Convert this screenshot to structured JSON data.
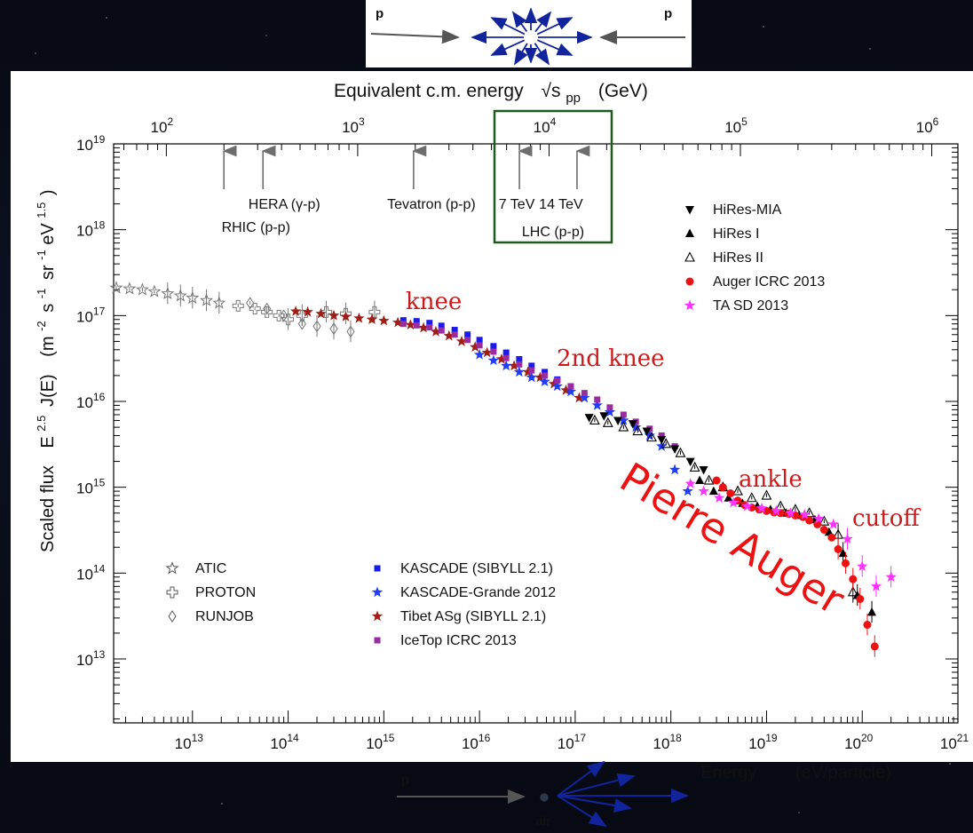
{
  "colors": {
    "kascade": "#1a1aee",
    "kascade_grande": "#1f3cff",
    "tibet": "#a01e16",
    "icetop": "#9a2ba0",
    "auger": "#ee1111",
    "tasd": "#ff33ff",
    "gray": "#777777",
    "hires": "#000000",
    "annotation": "#cc1a1a",
    "lhc_box": "#1e5a1e",
    "arrow_blue": "#12249c"
  },
  "diagram_top": {
    "label_left": "p",
    "label_right": "p"
  },
  "diagram_bottom": {
    "label_p": "p",
    "label_air": "air"
  },
  "top_axis": {
    "title_main": "Equivalent c.m. energy",
    "title_sqrt": "√s",
    "title_sub": "pp",
    "title_unit": "(GeV)",
    "ticks": [
      {
        "base": "10",
        "exp": "2",
        "value": 100
      },
      {
        "base": "10",
        "exp": "3",
        "value": 1000
      },
      {
        "base": "10",
        "exp": "4",
        "value": 10000
      },
      {
        "base": "10",
        "exp": "5",
        "value": 100000
      },
      {
        "base": "10",
        "exp": "6",
        "value": 1000000
      }
    ]
  },
  "bottom_axis": {
    "title_main": "Energy",
    "title_unit": "(eV/particle)",
    "ticks": [
      {
        "base": "10",
        "exp": "13",
        "value": 13
      },
      {
        "base": "10",
        "exp": "14",
        "value": 14
      },
      {
        "base": "10",
        "exp": "15",
        "value": 15
      },
      {
        "base": "10",
        "exp": "16",
        "value": 16
      },
      {
        "base": "10",
        "exp": "17",
        "value": 17
      },
      {
        "base": "10",
        "exp": "18",
        "value": 18
      },
      {
        "base": "10",
        "exp": "19",
        "value": 19
      },
      {
        "base": "10",
        "exp": "20",
        "value": 20
      },
      {
        "base": "10",
        "exp": "21",
        "value": 21
      }
    ]
  },
  "y_axis": {
    "label_main": "Scaled flux",
    "label_formula": "E",
    "label_formula_exp": "2.5",
    "label_formula_rest": "J(E)",
    "label_unit_open": "(m",
    "label_unit_m_exp": "-2",
    "label_unit_s": "s",
    "label_unit_s_exp": "-1",
    "label_unit_sr": "sr",
    "label_unit_sr_exp": "-1",
    "label_unit_eV": "eV",
    "label_unit_eV_exp": "1.5",
    "label_unit_close": ")",
    "ticks": [
      {
        "base": "10",
        "exp": "19",
        "value": 19
      },
      {
        "base": "10",
        "exp": "18",
        "value": 18
      },
      {
        "base": "10",
        "exp": "17",
        "value": 17
      },
      {
        "base": "10",
        "exp": "16",
        "value": 16
      },
      {
        "base": "10",
        "exp": "15",
        "value": 15
      },
      {
        "base": "10",
        "exp": "14",
        "value": 14
      },
      {
        "base": "10",
        "exp": "13",
        "value": 13
      }
    ]
  },
  "accelerators": [
    {
      "sqrt_s_gev": 320,
      "label": "HERA (γ-p)"
    },
    {
      "sqrt_s_gev": 200,
      "label": "RHIC (p-p)"
    },
    {
      "sqrt_s_gev": 1960,
      "label": "Tevatron (p-p)"
    },
    {
      "sqrt_s_gev": 7000,
      "label": "7 TeV"
    },
    {
      "sqrt_s_gev": 14000,
      "label": "14 TeV"
    }
  ],
  "lhc_label": "LHC (p-p)",
  "annotations": {
    "knee": "knee",
    "second_knee": "2nd knee",
    "ankle": "ankle",
    "cutoff": "cutoff",
    "pierre_auger": "Pierre Auger"
  },
  "legend_left": [
    {
      "marker": "star-open",
      "label": "ATIC"
    },
    {
      "marker": "cross-open",
      "label": "PROTON"
    },
    {
      "marker": "diamond-open",
      "label": "RUNJOB"
    }
  ],
  "legend_middle": [
    {
      "marker": "square",
      "color_key": "kascade",
      "label": "KASCADE (SIBYLL 2.1)"
    },
    {
      "marker": "star",
      "color_key": "kascade_grande",
      "label": "KASCADE-Grande 2012"
    },
    {
      "marker": "star",
      "color_key": "tibet",
      "label": "Tibet ASg (SIBYLL 2.1)"
    },
    {
      "marker": "square",
      "color_key": "icetop",
      "label": "IceTop ICRC 2013"
    }
  ],
  "legend_right": [
    {
      "marker": "triangle-down",
      "color_key": "hires",
      "label": "HiRes-MIA"
    },
    {
      "marker": "triangle-up",
      "color_key": "hires",
      "label": "HiRes I"
    },
    {
      "marker": "triangle-open",
      "color_key": "hires",
      "label": "HiRes II"
    },
    {
      "marker": "circle",
      "color_key": "auger",
      "label": "Auger ICRC 2013"
    },
    {
      "marker": "star",
      "color_key": "tasd",
      "label": "TA SD 2013"
    }
  ],
  "chart_data": {
    "type": "scatter",
    "x_scale": "log",
    "y_scale": "log",
    "xlim": [
      1500000000000.0,
      1e+21
    ],
    "ylim": [
      1800000000000.0,
      1e+19
    ],
    "legend_position": "inside",
    "series": [
      {
        "name": "ATIC",
        "marker": "star-open",
        "color_key": "gray",
        "x": [
          1600000000000.0,
          2200000000000.0,
          3000000000000.0,
          4000000000000.0,
          5500000000000.0,
          7500000000000.0,
          10000000000000.0,
          14000000000000.0,
          19000000000000.0
        ],
        "y": [
          2.1e+17,
          2.05e+17,
          2e+17,
          1.9e+17,
          1.8e+17,
          1.7e+17,
          1.6e+17,
          1.5e+17,
          1.4e+17
        ]
      },
      {
        "name": "PROTON",
        "marker": "cross-open",
        "color_key": "gray",
        "x": [
          30000000000000.0,
          45000000000000.0,
          60000000000000.0,
          80000000000000.0,
          100000000000000.0,
          140000000000000.0,
          250000000000000.0,
          400000000000000.0,
          800000000000000.0
        ],
        "y": [
          1.3e+17,
          1.2e+17,
          1.1e+17,
          1e+17,
          9e+16,
          1e+17,
          1.1e+17,
          1.05e+17,
          1.1e+17
        ]
      },
      {
        "name": "RUNJOB",
        "marker": "diamond-open",
        "color_key": "gray",
        "x": [
          40000000000000.0,
          60000000000000.0,
          90000000000000.0,
          140000000000000.0,
          200000000000000.0,
          300000000000000.0,
          450000000000000.0
        ],
        "y": [
          1.4e+17,
          1.2e+17,
          1e+17,
          8e+16,
          7.5e+16,
          7e+16,
          6.5e+16
        ]
      },
      {
        "name": "Tibet ASg (SIBYLL 2.1)",
        "marker": "star",
        "color_key": "tibet",
        "x": [
          120000000000000.0,
          160000000000000.0,
          220000000000000.0,
          300000000000000.0,
          400000000000000.0,
          550000000000000.0,
          750000000000000.0,
          1000000000000000.0,
          1400000000000000.0,
          1900000000000000.0,
          2600000000000000.0,
          3500000000000000.0,
          4800000000000000.0,
          6500000000000000.0,
          9000000000000000.0,
          1.2e+16,
          1.7e+16,
          2.3e+16,
          3.2e+16,
          4.3e+16,
          6e+16,
          8e+16,
          1.1e+17
        ],
        "y": [
          1.12e+17,
          1.1e+17,
          1.05e+17,
          1e+17,
          9.7e+16,
          9.3e+16,
          9e+16,
          8.7e+16,
          8.3e+16,
          7.8e+16,
          7.2e+16,
          6.5e+16,
          5.8e+16,
          5e+16,
          4.3e+16,
          3.7e+16,
          3.1e+16,
          2.6e+16,
          2.2e+16,
          1.9e+16,
          1.6e+16,
          1.35e+16,
          1.1e+16
        ]
      },
      {
        "name": "KASCADE (SIBYLL 2.1)",
        "marker": "square",
        "color_key": "kascade",
        "x": [
          1600000000000000.0,
          2200000000000000.0,
          3000000000000000.0,
          4000000000000000.0,
          5500000000000000.0,
          7500000000000000.0,
          1e+16,
          1.4e+16,
          1.9e+16,
          2.6e+16,
          3.5e+16,
          4.8e+16,
          6.5e+16,
          9e+16
        ],
        "y": [
          8.8e+16,
          8.6e+16,
          8.2e+16,
          7.6e+16,
          6.8e+16,
          6e+16,
          5.2e+16,
          4.4e+16,
          3.7e+16,
          3.1e+16,
          2.6e+16,
          2.2e+16,
          1.8e+16,
          1.5e+16
        ]
      },
      {
        "name": "KASCADE-Grande 2012",
        "marker": "star",
        "color_key": "kascade_grande",
        "x": [
          1e+16,
          1.4e+16,
          1.9e+16,
          2.6e+16,
          3.5e+16,
          4.8e+16,
          6.5e+16,
          9e+16,
          1.25e+17,
          1.7e+17,
          2.3e+17,
          3.2e+17,
          4.3e+17,
          6e+17,
          8e+17,
          1.1e+18,
          1.5e+18
        ],
        "y": [
          3.5e+16,
          3e+16,
          2.6e+16,
          2.2e+16,
          1.9e+16,
          1.7e+16,
          1.5e+16,
          1.3e+16,
          1.1e+16,
          9000000000000000.0,
          7500000000000000.0,
          6000000000000000.0,
          5000000000000000.0,
          4000000000000000.0,
          3000000000000000.0,
          1600000000000000.0,
          900000000000000.0
        ]
      },
      {
        "name": "IceTop ICRC 2013",
        "marker": "square",
        "color_key": "icetop",
        "x": [
          1600000000000000.0,
          2200000000000000.0,
          3000000000000000.0,
          4000000000000000.0,
          5500000000000000.0,
          7500000000000000.0,
          1e+16,
          1.4e+16,
          1.9e+16,
          2.6e+16,
          3.5e+16,
          4.8e+16,
          6.5e+16,
          9e+16,
          1.25e+17,
          1.7e+17,
          2.3e+17,
          3.2e+17,
          4.3e+17,
          6e+17,
          8e+17,
          1.1e+18
        ],
        "y": [
          8e+16,
          7.7e+16,
          7.3e+16,
          6.7e+16,
          6e+16,
          5.2e+16,
          4.5e+16,
          3.8e+16,
          3.2e+16,
          2.7e+16,
          2.3e+16,
          2e+16,
          1.75e+16,
          1.5e+16,
          1.25e+16,
          1.05e+16,
          8500000000000000.0,
          7000000000000000.0,
          5800000000000000.0,
          4800000000000000.0,
          4000000000000000.0,
          3000000000000000.0
        ]
      },
      {
        "name": "HiRes-MIA",
        "marker": "triangle-down",
        "color_key": "hires",
        "x": [
          1.4e+17,
          2e+17,
          2.8e+17,
          4e+17,
          5.6e+17,
          8e+17,
          1.1e+18,
          1.6e+18,
          2.2e+18
        ],
        "y": [
          6500000000000000.0,
          6800000000000000.0,
          6000000000000000.0,
          5500000000000000.0,
          4500000000000000.0,
          3600000000000000.0,
          2800000000000000.0,
          2000000000000000.0,
          1600000000000000.0
        ]
      },
      {
        "name": "HiRes I",
        "marker": "triangle-up",
        "color_key": "hires",
        "x": [
          2e+18,
          2.8e+18,
          4e+18,
          5.6e+18,
          8e+18,
          1.1e+19,
          1.6e+19,
          2.2e+19,
          3.2e+19,
          4.5e+19,
          6.3e+19,
          8.9e+19,
          1.26e+20
        ],
        "y": [
          1200000000000000.0,
          900000000000000.0,
          750000000000000.0,
          650000000000000.0,
          600000000000000.0,
          550000000000000.0,
          500000000000000.0,
          470000000000000.0,
          420000000000000.0,
          300000000000000.0,
          170000000000000.0,
          55000000000000.0,
          35000000000000.0
        ]
      },
      {
        "name": "HiRes II",
        "marker": "triangle-open",
        "color_key": "hires",
        "x": [
          1.6e+17,
          2.2e+17,
          3.2e+17,
          4.5e+17,
          6.3e+17,
          8.9e+17,
          1.26e+18,
          1.78e+18,
          2.5e+18,
          3.5e+18,
          5e+18,
          7e+18,
          1e+19,
          1.4e+19,
          2e+19,
          2.8e+19,
          4e+19,
          5.6e+19,
          8e+19
        ],
        "y": [
          6000000000000000.0,
          5600000000000000.0,
          5000000000000000.0,
          4500000000000000.0,
          3800000000000000.0,
          3200000000000000.0,
          2500000000000000.0,
          1700000000000000.0,
          1200000000000000.0,
          1000000000000000.0,
          900000000000000.0,
          750000000000000.0,
          800000000000000.0,
          600000000000000.0,
          550000000000000.0,
          500000000000000.0,
          400000000000000.0,
          280000000000000.0,
          60000000000000.0
        ]
      },
      {
        "name": "Auger ICRC 2013",
        "marker": "circle",
        "color_key": "auger",
        "x": [
          3e+18,
          3.5e+18,
          4.2e+18,
          5e+18,
          5.9e+18,
          7e+18,
          8.4e+18,
          1e+19,
          1.2e+19,
          1.4e+19,
          1.7e+19,
          2e+19,
          2.4e+19,
          2.8e+19,
          3.4e+19,
          4e+19,
          4.8e+19,
          5.6e+19,
          6.7e+19,
          8e+19,
          9.5e+19,
          1.13e+20,
          1.35e+20
        ],
        "y": [
          1200000000000000.0,
          1000000000000000.0,
          850000000000000.0,
          700000000000000.0,
          620000000000000.0,
          580000000000000.0,
          550000000000000.0,
          530000000000000.0,
          510000000000000.0,
          500000000000000.0,
          490000000000000.0,
          470000000000000.0,
          450000000000000.0,
          410000000000000.0,
          370000000000000.0,
          320000000000000.0,
          260000000000000.0,
          190000000000000.0,
          130000000000000.0,
          85000000000000.0,
          50000000000000.0,
          25000000000000.0,
          14000000000000.0
        ]
      },
      {
        "name": "TA SD 2013",
        "marker": "star",
        "color_key": "tasd",
        "x": [
          1.6e+18,
          2.2e+18,
          3.2e+18,
          4.5e+18,
          6.3e+18,
          8.9e+18,
          1.26e+19,
          1.78e+19,
          2.5e+19,
          3.5e+19,
          5e+19,
          7e+19,
          1e+20,
          1.4e+20,
          2e+20
        ],
        "y": [
          1100000000000000.0,
          900000000000000.0,
          750000000000000.0,
          660000000000000.0,
          600000000000000.0,
          570000000000000.0,
          530000000000000.0,
          500000000000000.0,
          480000000000000.0,
          430000000000000.0,
          370000000000000.0,
          250000000000000.0,
          120000000000000.0,
          70000000000000.0,
          90000000000000.0
        ]
      }
    ]
  }
}
